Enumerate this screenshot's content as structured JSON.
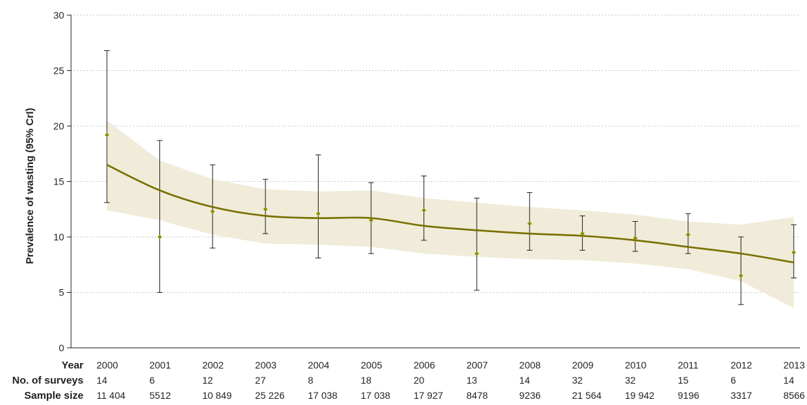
{
  "chart_data": {
    "type": "line",
    "ylabel": "Prevalence of wasting (95% CrI)",
    "ylim": [
      0,
      30
    ],
    "yticks": [
      0,
      5,
      10,
      15,
      20,
      25,
      30
    ],
    "grid": "horizontal dotted",
    "row_headers": {
      "year": "Year",
      "surveys": "No. of surveys",
      "sample": "Sample size"
    },
    "x": [
      "2000",
      "2001",
      "2002",
      "2003",
      "2004",
      "2005",
      "2006",
      "2007",
      "2008",
      "2009",
      "2010",
      "2011",
      "2012",
      "2013"
    ],
    "surveys": [
      "14",
      "6",
      "12",
      "27",
      "8",
      "18",
      "20",
      "13",
      "14",
      "32",
      "32",
      "15",
      "6",
      "14"
    ],
    "sample_size": [
      "11 404",
      "5512",
      "10 849",
      "25 226",
      "17 038",
      "17 038",
      "17 927",
      "8478",
      "9236",
      "21 564",
      "19 942",
      "9196",
      "3317",
      "8566"
    ],
    "series": [
      {
        "type": "line",
        "values": [
          16.5,
          14.2,
          12.7,
          11.9,
          11.7,
          11.7,
          11.0,
          10.6,
          10.3,
          10.1,
          9.7,
          9.1,
          8.5,
          7.7
        ],
        "band_lower": [
          12.4,
          11.5,
          10.2,
          9.4,
          9.3,
          9.1,
          8.5,
          8.2,
          8.0,
          7.9,
          7.6,
          7.1,
          6.0,
          3.6
        ],
        "band_upper": [
          20.5,
          16.9,
          15.2,
          14.3,
          14.1,
          14.2,
          13.5,
          13.1,
          12.7,
          12.4,
          12.0,
          11.4,
          11.1,
          11.8
        ],
        "line_color": "#7a6f00",
        "band_color": "#f0ecd9"
      },
      {
        "type": "scatter",
        "values": [
          19.2,
          10.0,
          12.3,
          12.5,
          12.1,
          11.5,
          12.4,
          8.5,
          11.2,
          10.3,
          9.9,
          10.2,
          6.5,
          8.6
        ],
        "err_low": [
          13.1,
          5.0,
          9.0,
          10.3,
          8.1,
          8.5,
          9.7,
          5.2,
          8.8,
          8.8,
          8.7,
          8.5,
          3.9,
          6.3
        ],
        "err_high": [
          26.8,
          18.7,
          16.5,
          15.2,
          17.4,
          14.9,
          15.5,
          13.5,
          14.0,
          11.9,
          11.4,
          12.1,
          10.0,
          11.1
        ],
        "marker_color": "#8c8c00"
      }
    ]
  }
}
